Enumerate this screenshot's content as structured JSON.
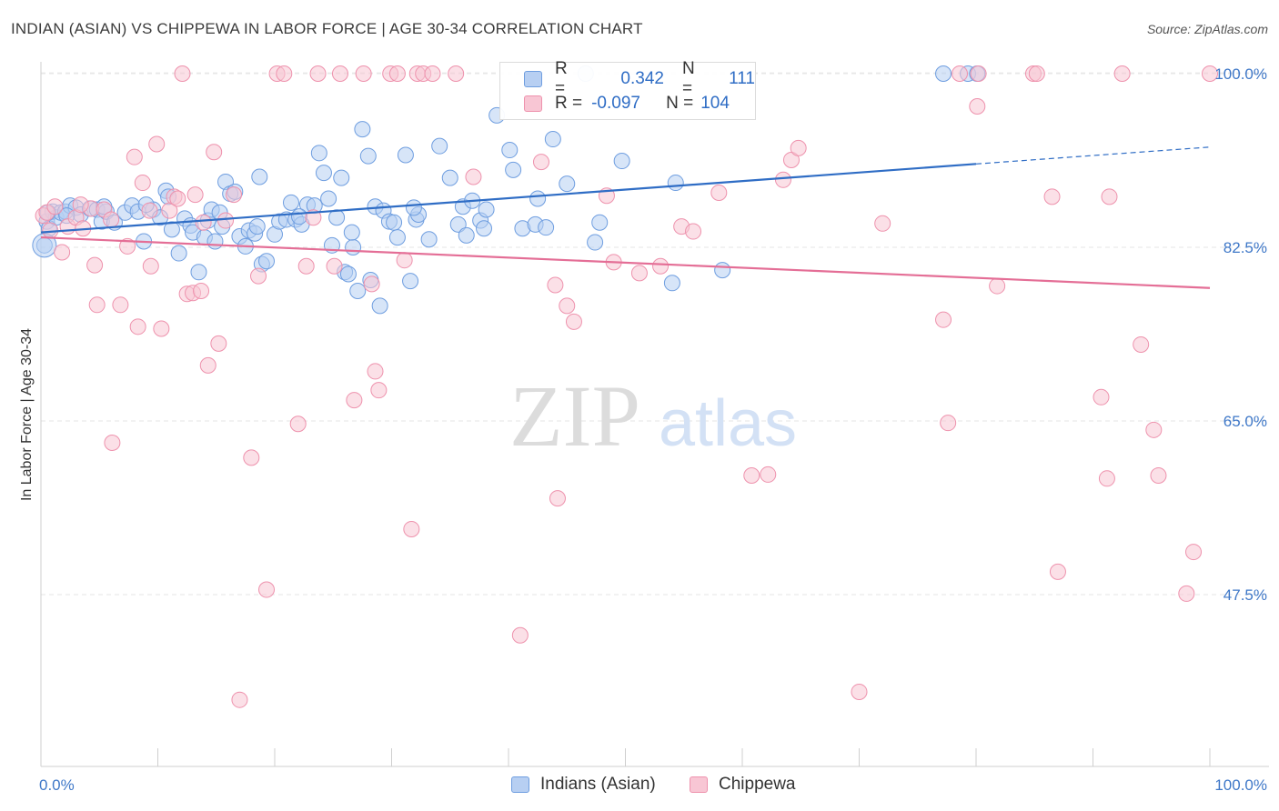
{
  "title": "INDIAN (ASIAN) VS CHIPPEWA IN LABOR FORCE | AGE 30-34 CORRELATION CHART",
  "source": "Source: ZipAtlas.com",
  "watermark": {
    "zip": "ZIP",
    "atlas": "atlas"
  },
  "legend": {
    "row1": {
      "r_label": "R =",
      "r_value": "0.342",
      "n_label": "N =",
      "n_value": "111"
    },
    "row2": {
      "r_label": "R =",
      "r_value": "-0.097",
      "n_label": "N =",
      "n_value": "104"
    }
  },
  "colors": {
    "blue_fill": "#b7cff2",
    "blue_stroke": "#6f9ee0",
    "blue_line": "#2f6dc5",
    "pink_fill": "#f8c6d4",
    "pink_stroke": "#ee92ad",
    "pink_line": "#e46e96",
    "tick_label": "#3f78c8"
  },
  "chart_data": {
    "type": "scatter",
    "title": "INDIAN (ASIAN) VS CHIPPEWA IN LABOR FORCE | AGE 30-34 CORRELATION CHART",
    "xlabel": "",
    "ylabel": "In Labor Force | Age 30-34",
    "xlim": [
      0,
      100
    ],
    "ylim": [
      29.4,
      102
    ],
    "x_tick_labels": [
      "0.0%",
      "100.0%"
    ],
    "y_ticks": [
      47.5,
      65.0,
      82.5,
      100.0
    ],
    "y_tick_labels": [
      "47.5%",
      "65.0%",
      "82.5%",
      "100.0%"
    ],
    "grid": true,
    "legend_position": "top-center",
    "series": [
      {
        "name": "Indians (Asian)",
        "r": 0.342,
        "n": 111,
        "trend": {
          "x": [
            0,
            80
          ],
          "y": [
            84.0,
            90.9
          ],
          "dashed_to": [
            100,
            92.6
          ]
        },
        "points": [
          [
            0.3,
            82.7
          ],
          [
            0.5,
            85.1
          ],
          [
            0.7,
            84.4
          ],
          [
            1.0,
            86.1
          ],
          [
            1.3,
            85.5
          ],
          [
            1.7,
            86.0
          ],
          [
            2.1,
            86.1
          ],
          [
            2.5,
            86.7
          ],
          [
            3.0,
            86.5
          ],
          [
            3.4,
            85.8
          ],
          [
            4.2,
            86.4
          ],
          [
            4.8,
            86.3
          ],
          [
            5.2,
            85.1
          ],
          [
            5.6,
            86.1
          ],
          [
            6.3,
            85.0
          ],
          [
            7.2,
            86.0
          ],
          [
            7.8,
            86.7
          ],
          [
            8.3,
            86.1
          ],
          [
            8.8,
            83.1
          ],
          [
            9.6,
            86.3
          ],
          [
            10.2,
            85.5
          ],
          [
            10.7,
            88.2
          ],
          [
            10.9,
            87.6
          ],
          [
            11.2,
            84.3
          ],
          [
            11.8,
            81.9
          ],
          [
            12.3,
            85.4
          ],
          [
            12.8,
            84.7
          ],
          [
            13.0,
            84.0
          ],
          [
            13.5,
            80.0
          ],
          [
            14.0,
            83.5
          ],
          [
            14.3,
            85.2
          ],
          [
            14.6,
            86.3
          ],
          [
            15.3,
            86.0
          ],
          [
            15.5,
            84.6
          ],
          [
            15.8,
            89.1
          ],
          [
            16.2,
            87.9
          ],
          [
            16.6,
            88.1
          ],
          [
            17.0,
            83.6
          ],
          [
            17.5,
            82.6
          ],
          [
            17.8,
            84.2
          ],
          [
            18.3,
            83.9
          ],
          [
            18.7,
            89.6
          ],
          [
            18.9,
            80.8
          ],
          [
            19.3,
            81.1
          ],
          [
            20.0,
            83.8
          ],
          [
            20.4,
            85.1
          ],
          [
            21.0,
            85.3
          ],
          [
            21.4,
            87.0
          ],
          [
            21.8,
            85.3
          ],
          [
            22.3,
            84.8
          ],
          [
            22.8,
            86.8
          ],
          [
            23.4,
            86.7
          ],
          [
            23.8,
            92.0
          ],
          [
            24.2,
            90.0
          ],
          [
            24.6,
            87.4
          ],
          [
            24.9,
            82.7
          ],
          [
            25.3,
            85.5
          ],
          [
            25.7,
            89.5
          ],
          [
            26.0,
            80.0
          ],
          [
            26.3,
            79.8
          ],
          [
            26.7,
            82.5
          ],
          [
            27.1,
            78.1
          ],
          [
            27.5,
            94.4
          ],
          [
            28.0,
            91.7
          ],
          [
            28.2,
            79.2
          ],
          [
            28.6,
            86.6
          ],
          [
            29.0,
            76.6
          ],
          [
            29.3,
            86.2
          ],
          [
            29.8,
            85.1
          ],
          [
            30.2,
            85.0
          ],
          [
            30.5,
            83.5
          ],
          [
            31.2,
            91.8
          ],
          [
            31.6,
            79.1
          ],
          [
            32.1,
            85.3
          ],
          [
            32.3,
            85.8
          ],
          [
            33.2,
            83.3
          ],
          [
            34.1,
            92.7
          ],
          [
            35.0,
            89.5
          ],
          [
            35.7,
            84.8
          ],
          [
            36.1,
            86.6
          ],
          [
            36.4,
            83.7
          ],
          [
            36.9,
            87.2
          ],
          [
            37.6,
            85.2
          ],
          [
            37.9,
            84.4
          ],
          [
            38.1,
            86.3
          ],
          [
            39.0,
            95.8
          ],
          [
            40.1,
            92.3
          ],
          [
            40.4,
            90.3
          ],
          [
            41.2,
            84.4
          ],
          [
            42.3,
            84.8
          ],
          [
            42.5,
            87.4
          ],
          [
            43.2,
            84.5
          ],
          [
            43.8,
            93.4
          ],
          [
            45.0,
            88.9
          ],
          [
            46.6,
            100.0
          ],
          [
            47.4,
            83.0
          ],
          [
            47.8,
            85.0
          ],
          [
            49.7,
            91.2
          ],
          [
            54.0,
            78.9
          ],
          [
            54.3,
            89.0
          ],
          [
            58.3,
            80.2
          ],
          [
            77.2,
            100.0
          ],
          [
            79.3,
            100.0
          ],
          [
            80.1,
            100.0
          ],
          [
            0.6,
            86.0
          ],
          [
            2.2,
            85.7
          ],
          [
            5.4,
            86.6
          ],
          [
            9.0,
            86.8
          ],
          [
            14.9,
            83.1
          ],
          [
            18.5,
            84.6
          ],
          [
            22.1,
            85.6
          ],
          [
            26.6,
            84.0
          ],
          [
            31.9,
            86.5
          ]
        ]
      },
      {
        "name": "Chippewa",
        "r": -0.097,
        "n": 104,
        "trend": {
          "x": [
            0,
            100
          ],
          "y": [
            83.5,
            78.4
          ]
        },
        "points": [
          [
            0.2,
            85.7
          ],
          [
            0.5,
            86.0
          ],
          [
            0.8,
            84.2
          ],
          [
            1.2,
            86.6
          ],
          [
            1.8,
            82.0
          ],
          [
            2.3,
            84.6
          ],
          [
            3.0,
            85.5
          ],
          [
            3.6,
            84.4
          ],
          [
            4.3,
            86.4
          ],
          [
            4.6,
            80.7
          ],
          [
            4.8,
            76.7
          ],
          [
            5.4,
            86.3
          ],
          [
            6.1,
            62.8
          ],
          [
            6.8,
            76.7
          ],
          [
            7.4,
            82.6
          ],
          [
            8.0,
            91.6
          ],
          [
            8.3,
            74.5
          ],
          [
            8.7,
            89.0
          ],
          [
            9.4,
            80.6
          ],
          [
            9.9,
            92.9
          ],
          [
            10.3,
            74.3
          ],
          [
            11.0,
            86.2
          ],
          [
            11.4,
            87.6
          ],
          [
            11.7,
            87.4
          ],
          [
            12.1,
            100.0
          ],
          [
            12.5,
            77.8
          ],
          [
            13.0,
            77.9
          ],
          [
            13.2,
            87.8
          ],
          [
            13.7,
            78.1
          ],
          [
            14.3,
            70.6
          ],
          [
            14.8,
            92.1
          ],
          [
            15.2,
            72.8
          ],
          [
            15.8,
            85.2
          ],
          [
            16.5,
            87.8
          ],
          [
            17.0,
            36.9
          ],
          [
            18.0,
            61.3
          ],
          [
            18.6,
            79.6
          ],
          [
            19.3,
            48.0
          ],
          [
            20.2,
            100.0
          ],
          [
            20.8,
            100.0
          ],
          [
            22.0,
            64.7
          ],
          [
            22.7,
            80.6
          ],
          [
            23.3,
            85.5
          ],
          [
            23.7,
            100.0
          ],
          [
            25.1,
            80.6
          ],
          [
            25.6,
            100.0
          ],
          [
            26.8,
            67.1
          ],
          [
            27.6,
            100.0
          ],
          [
            28.3,
            78.8
          ],
          [
            28.6,
            70.0
          ],
          [
            28.9,
            68.1
          ],
          [
            29.9,
            100.0
          ],
          [
            30.5,
            100.0
          ],
          [
            31.1,
            81.2
          ],
          [
            31.7,
            54.1
          ],
          [
            32.2,
            100.0
          ],
          [
            32.7,
            100.0
          ],
          [
            33.5,
            100.0
          ],
          [
            35.5,
            100.0
          ],
          [
            37.0,
            89.6
          ],
          [
            41.0,
            43.4
          ],
          [
            42.8,
            91.1
          ],
          [
            44.0,
            78.7
          ],
          [
            44.2,
            57.2
          ],
          [
            45.0,
            76.6
          ],
          [
            45.6,
            75.0
          ],
          [
            48.4,
            87.7
          ],
          [
            49.0,
            81.0
          ],
          [
            51.2,
            79.9
          ],
          [
            53.0,
            80.6
          ],
          [
            54.8,
            84.6
          ],
          [
            55.8,
            84.1
          ],
          [
            58.0,
            88.0
          ],
          [
            60.8,
            59.5
          ],
          [
            62.2,
            59.6
          ],
          [
            63.5,
            89.3
          ],
          [
            64.2,
            91.3
          ],
          [
            64.8,
            92.5
          ],
          [
            70.0,
            37.7
          ],
          [
            72.0,
            84.9
          ],
          [
            77.2,
            75.2
          ],
          [
            77.6,
            64.8
          ],
          [
            78.6,
            100.0
          ],
          [
            80.1,
            96.7
          ],
          [
            80.2,
            100.0
          ],
          [
            81.8,
            78.6
          ],
          [
            84.9,
            100.0
          ],
          [
            85.2,
            100.0
          ],
          [
            86.5,
            87.6
          ],
          [
            87.0,
            49.8
          ],
          [
            90.7,
            67.4
          ],
          [
            91.2,
            59.2
          ],
          [
            91.4,
            87.6
          ],
          [
            92.5,
            100.0
          ],
          [
            94.1,
            72.7
          ],
          [
            95.2,
            64.1
          ],
          [
            95.6,
            59.5
          ],
          [
            98.0,
            47.6
          ],
          [
            98.6,
            51.8
          ],
          [
            100.0,
            100.0
          ],
          [
            3.4,
            86.8
          ],
          [
            6.0,
            85.3
          ],
          [
            9.3,
            86.2
          ],
          [
            13.9,
            85.0
          ]
        ]
      }
    ]
  }
}
